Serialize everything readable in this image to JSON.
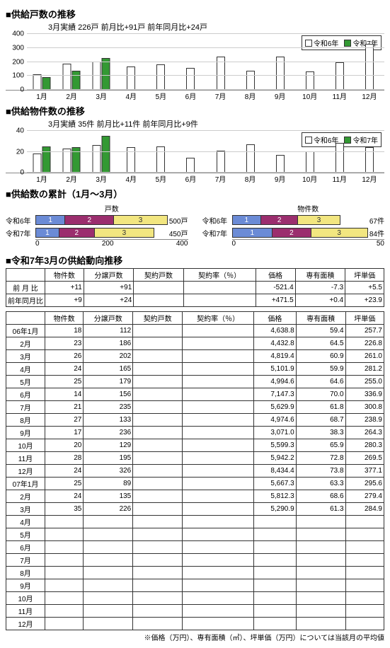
{
  "colors": {
    "r6_fill": "#ffffff",
    "r7_fill": "#339933",
    "seg1": "#6b8bd6",
    "seg2": "#9b2e6e",
    "seg3": "#f2e680",
    "grid": "#cccccc",
    "border": "#333333"
  },
  "chart1": {
    "title": "■供給戸数の推移",
    "subtitle": "3月実績 226戸  前月比+91戸   前年同月比+24戸",
    "legend_r6": "令和6年",
    "legend_r7": "令和7年",
    "ymax": 400,
    "yticks": [
      0,
      100,
      200,
      300,
      400
    ],
    "months": [
      "1月",
      "2月",
      "3月",
      "4月",
      "5月",
      "6月",
      "7月",
      "8月",
      "9月",
      "10月",
      "11月",
      "12月"
    ],
    "r6": [
      112,
      186,
      202,
      165,
      179,
      156,
      235,
      133,
      236,
      129,
      195,
      326
    ],
    "r7": [
      89,
      135,
      226,
      null,
      null,
      null,
      null,
      null,
      null,
      null,
      null,
      null
    ]
  },
  "chart2": {
    "title": "■供給物件数の推移",
    "subtitle": "3月実績 35件  前月比+11件   前年同月比+9件",
    "legend_r6": "令和6年",
    "legend_r7": "令和7年",
    "ymax": 40,
    "yticks": [
      0,
      20,
      40
    ],
    "months": [
      "1月",
      "2月",
      "3月",
      "4月",
      "5月",
      "6月",
      "7月",
      "8月",
      "9月",
      "10月",
      "11月",
      "12月"
    ],
    "r6": [
      18,
      23,
      26,
      24,
      25,
      14,
      21,
      27,
      17,
      20,
      28,
      24
    ],
    "r7": [
      25,
      24,
      35,
      null,
      null,
      null,
      null,
      null,
      null,
      null,
      null,
      null
    ]
  },
  "cumul": {
    "title": "■供給数の累計（1月～3月）",
    "unit_left": "戸数",
    "unit_right": "物件数",
    "left": {
      "rows": [
        {
          "label": "令和6年",
          "segs": [
            112,
            186,
            202
          ],
          "total": "500戸",
          "total_val": 500
        },
        {
          "label": "令和7年",
          "segs": [
            89,
            135,
            226
          ],
          "total": "450戸",
          "total_val": 450
        }
      ],
      "axis": [
        0,
        200,
        400
      ],
      "max": 500
    },
    "right": {
      "rows": [
        {
          "label": "令和6年",
          "segs": [
            18,
            23,
            26
          ],
          "total": "67件",
          "total_val": 67
        },
        {
          "label": "令和7年",
          "segs": [
            25,
            24,
            35
          ],
          "total": "84件",
          "total_val": 84
        }
      ],
      "axis": [
        0,
        50
      ],
      "max": 84
    }
  },
  "trend": {
    "title": "■令和7年3月の供給動向推移",
    "columns": [
      "",
      "物件数",
      "分譲戸数",
      "契約戸数",
      "契約率（％）",
      "価格",
      "専有面積",
      "坪単価"
    ],
    "compare": [
      {
        "label": "前 月 比",
        "vals": [
          "+11",
          "+91",
          "",
          "",
          "-521.4",
          "-7.3",
          "+5.5"
        ]
      },
      {
        "label": "前年同月比",
        "vals": [
          "+9",
          "+24",
          "",
          "",
          "+471.5",
          "+0.4",
          "+23.9"
        ]
      }
    ],
    "columns2": [
      "",
      "物件数",
      "分譲戸数",
      "契約戸数",
      "契約率（％）",
      "価格",
      "専有面積",
      "坪単価"
    ],
    "rows": [
      {
        "label": "06年1月",
        "vals": [
          "18",
          "112",
          "",
          "",
          "4,638.8",
          "59.4",
          "257.7"
        ]
      },
      {
        "label": "2月",
        "vals": [
          "23",
          "186",
          "",
          "",
          "4,432.8",
          "64.5",
          "226.8"
        ]
      },
      {
        "label": "3月",
        "vals": [
          "26",
          "202",
          "",
          "",
          "4,819.4",
          "60.9",
          "261.0"
        ]
      },
      {
        "label": "4月",
        "vals": [
          "24",
          "165",
          "",
          "",
          "5,101.9",
          "59.9",
          "281.2"
        ]
      },
      {
        "label": "5月",
        "vals": [
          "25",
          "179",
          "",
          "",
          "4,994.6",
          "64.6",
          "255.0"
        ]
      },
      {
        "label": "6月",
        "vals": [
          "14",
          "156",
          "",
          "",
          "7,147.3",
          "70.0",
          "336.9"
        ]
      },
      {
        "label": "7月",
        "vals": [
          "21",
          "235",
          "",
          "",
          "5,629.9",
          "61.8",
          "300.8"
        ]
      },
      {
        "label": "8月",
        "vals": [
          "27",
          "133",
          "",
          "",
          "4,974.6",
          "68.7",
          "238.9"
        ]
      },
      {
        "label": "9月",
        "vals": [
          "17",
          "236",
          "",
          "",
          "3,071.0",
          "38.3",
          "264.3"
        ]
      },
      {
        "label": "10月",
        "vals": [
          "20",
          "129",
          "",
          "",
          "5,599.3",
          "65.9",
          "280.3"
        ]
      },
      {
        "label": "11月",
        "vals": [
          "28",
          "195",
          "",
          "",
          "5,942.2",
          "72.8",
          "269.5"
        ]
      },
      {
        "label": "12月",
        "vals": [
          "24",
          "326",
          "",
          "",
          "8,434.4",
          "73.8",
          "377.1"
        ]
      },
      {
        "label": "07年1月",
        "vals": [
          "25",
          "89",
          "",
          "",
          "5,667.3",
          "63.3",
          "295.6"
        ]
      },
      {
        "label": "2月",
        "vals": [
          "24",
          "135",
          "",
          "",
          "5,812.3",
          "68.6",
          "279.4"
        ]
      },
      {
        "label": "3月",
        "vals": [
          "35",
          "226",
          "",
          "",
          "5,290.9",
          "61.3",
          "284.9"
        ]
      },
      {
        "label": "4月",
        "vals": [
          "",
          "",
          "",
          "",
          "",
          "",
          ""
        ]
      },
      {
        "label": "5月",
        "vals": [
          "",
          "",
          "",
          "",
          "",
          "",
          ""
        ]
      },
      {
        "label": "6月",
        "vals": [
          "",
          "",
          "",
          "",
          "",
          "",
          ""
        ]
      },
      {
        "label": "7月",
        "vals": [
          "",
          "",
          "",
          "",
          "",
          "",
          ""
        ]
      },
      {
        "label": "8月",
        "vals": [
          "",
          "",
          "",
          "",
          "",
          "",
          ""
        ]
      },
      {
        "label": "9月",
        "vals": [
          "",
          "",
          "",
          "",
          "",
          "",
          ""
        ]
      },
      {
        "label": "10月",
        "vals": [
          "",
          "",
          "",
          "",
          "",
          "",
          ""
        ]
      },
      {
        "label": "11月",
        "vals": [
          "",
          "",
          "",
          "",
          "",
          "",
          ""
        ]
      },
      {
        "label": "12月",
        "vals": [
          "",
          "",
          "",
          "",
          "",
          "",
          ""
        ]
      }
    ],
    "footnote": "※価格（万円）、専有面積（㎡）、坪単価（万円）については当該月の平均値"
  }
}
